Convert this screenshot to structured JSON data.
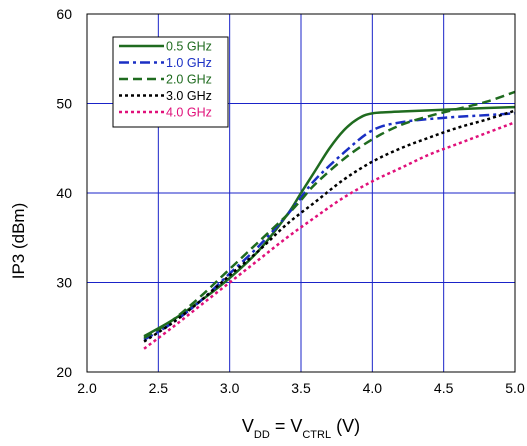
{
  "chart_data": {
    "type": "line",
    "xlabel_main": "V",
    "xlabel_sub1": "DD",
    "xlabel_mid": " = V",
    "xlabel_sub2": "CTRL",
    "xlabel_tail": " (V)",
    "ylabel": "IP3 (dBm)",
    "xlim": [
      2.0,
      5.0
    ],
    "ylim": [
      20,
      60
    ],
    "xticks": [
      "2.0",
      "2.5",
      "3.0",
      "3.5",
      "4.0",
      "4.5",
      "5.0"
    ],
    "yticks": [
      "20",
      "30",
      "40",
      "50",
      "60"
    ],
    "grid": true,
    "legend_position": "top-left",
    "series": [
      {
        "name": "0.5 GHz",
        "color": "#1f6b1f",
        "dash": "",
        "x": [
          2.4,
          2.6,
          2.8,
          3.0,
          3.2,
          3.4,
          3.5,
          3.6,
          3.7,
          3.8,
          3.9,
          4.0,
          4.2,
          4.5,
          4.8,
          5.0
        ],
        "y": [
          24.0,
          25.8,
          28.0,
          30.5,
          33.5,
          37.5,
          40.0,
          42.5,
          45.0,
          47.0,
          48.3,
          48.9,
          49.1,
          49.3,
          49.5,
          49.6
        ]
      },
      {
        "name": "1.0 GHz",
        "color": "#1a2fc4",
        "dash": "10,4,3,4",
        "x": [
          2.4,
          2.6,
          2.8,
          3.0,
          3.2,
          3.4,
          3.5,
          3.6,
          3.8,
          4.0,
          4.2,
          4.5,
          4.8,
          5.0
        ],
        "y": [
          23.6,
          25.5,
          28.0,
          31.0,
          34.0,
          37.5,
          39.5,
          41.5,
          44.5,
          47.0,
          47.9,
          48.4,
          48.7,
          48.9
        ]
      },
      {
        "name": "2.0 GHz",
        "color": "#1f6b1f",
        "dash": "9,5",
        "x": [
          2.4,
          2.6,
          2.8,
          3.0,
          3.2,
          3.4,
          3.5,
          3.6,
          3.8,
          4.0,
          4.2,
          4.4,
          4.6,
          4.8,
          5.0
        ],
        "y": [
          23.8,
          25.8,
          28.5,
          31.5,
          34.5,
          37.5,
          39.2,
          41.0,
          43.8,
          46.0,
          47.6,
          48.6,
          49.4,
          50.2,
          51.3
        ]
      },
      {
        "name": "3.0 GHz",
        "color": "#000000",
        "dash": "3,3",
        "x": [
          2.4,
          2.6,
          2.8,
          3.0,
          3.2,
          3.4,
          3.6,
          3.8,
          4.0,
          4.2,
          4.4,
          4.6,
          4.8,
          5.0
        ],
        "y": [
          23.4,
          25.5,
          28.0,
          30.8,
          33.5,
          36.5,
          39.0,
          41.5,
          43.5,
          45.0,
          46.2,
          47.3,
          48.2,
          49.2
        ]
      },
      {
        "name": "4.0 GHz",
        "color": "#e0107a",
        "dash": "3,3",
        "x": [
          2.4,
          2.6,
          2.8,
          3.0,
          3.2,
          3.4,
          3.6,
          3.8,
          4.0,
          4.2,
          4.4,
          4.6,
          4.8,
          5.0
        ],
        "y": [
          22.6,
          25.0,
          27.5,
          30.0,
          32.5,
          35.0,
          37.3,
          39.5,
          41.3,
          42.8,
          44.3,
          45.5,
          46.7,
          47.9
        ]
      }
    ]
  }
}
